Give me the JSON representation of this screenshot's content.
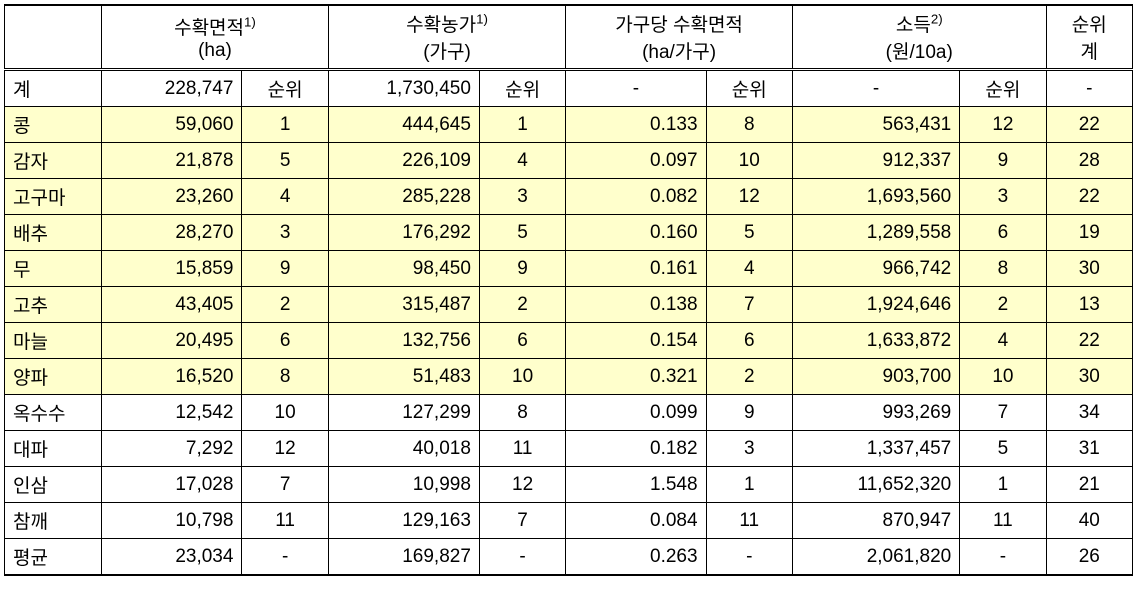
{
  "table": {
    "headers": {
      "h1": "수확면적",
      "h1_sup": "1)",
      "h1_unit": "(ha)",
      "h2": "수확농가",
      "h2_sup": "1)",
      "h2_unit": "(가구)",
      "h3": "가구당 수확면적",
      "h3_unit": "(ha/가구)",
      "h4": "소득",
      "h4_sup": "2)",
      "h4_unit": "(원/10a)",
      "h5": "순위",
      "h5_sub": "계"
    },
    "rank_label": "순위",
    "total_row": {
      "label": "계",
      "v1": "228,747",
      "v2": "1,730,450",
      "v3": "-",
      "v4": "-",
      "r5": "-"
    },
    "rows": [
      {
        "label": "콩",
        "v1": "59,060",
        "r1": "1",
        "v2": "444,645",
        "r2": "1",
        "v3": "0.133",
        "r3": "8",
        "v4": "563,431",
        "r4": "12",
        "r5": "22",
        "hl": true
      },
      {
        "label": "감자",
        "v1": "21,878",
        "r1": "5",
        "v2": "226,109",
        "r2": "4",
        "v3": "0.097",
        "r3": "10",
        "v4": "912,337",
        "r4": "9",
        "r5": "28",
        "hl": true
      },
      {
        "label": "고구마",
        "v1": "23,260",
        "r1": "4",
        "v2": "285,228",
        "r2": "3",
        "v3": "0.082",
        "r3": "12",
        "v4": "1,693,560",
        "r4": "3",
        "r5": "22",
        "hl": true
      },
      {
        "label": "배추",
        "v1": "28,270",
        "r1": "3",
        "v2": "176,292",
        "r2": "5",
        "v3": "0.160",
        "r3": "5",
        "v4": "1,289,558",
        "r4": "6",
        "r5": "19",
        "hl": true
      },
      {
        "label": "무",
        "v1": "15,859",
        "r1": "9",
        "v2": "98,450",
        "r2": "9",
        "v3": "0.161",
        "r3": "4",
        "v4": "966,742",
        "r4": "8",
        "r5": "30",
        "hl": true
      },
      {
        "label": "고추",
        "v1": "43,405",
        "r1": "2",
        "v2": "315,487",
        "r2": "2",
        "v3": "0.138",
        "r3": "7",
        "v4": "1,924,646",
        "r4": "2",
        "r5": "13",
        "hl": true
      },
      {
        "label": "마늘",
        "v1": "20,495",
        "r1": "6",
        "v2": "132,756",
        "r2": "6",
        "v3": "0.154",
        "r3": "6",
        "v4": "1,633,872",
        "r4": "4",
        "r5": "22",
        "hl": true
      },
      {
        "label": "양파",
        "v1": "16,520",
        "r1": "8",
        "v2": "51,483",
        "r2": "10",
        "v3": "0.321",
        "r3": "2",
        "v4": "903,700",
        "r4": "10",
        "r5": "30",
        "hl": true
      },
      {
        "label": "옥수수",
        "v1": "12,542",
        "r1": "10",
        "v2": "127,299",
        "r2": "8",
        "v3": "0.099",
        "r3": "9",
        "v4": "993,269",
        "r4": "7",
        "r5": "34",
        "hl": false
      },
      {
        "label": "대파",
        "v1": "7,292",
        "r1": "12",
        "v2": "40,018",
        "r2": "11",
        "v3": "0.182",
        "r3": "3",
        "v4": "1,337,457",
        "r4": "5",
        "r5": "31",
        "hl": false
      },
      {
        "label": "인삼",
        "v1": "17,028",
        "r1": "7",
        "v2": "10,998",
        "r2": "12",
        "v3": "1.548",
        "r3": "1",
        "v4": "11,652,320",
        "r4": "1",
        "r5": "21",
        "hl": false
      },
      {
        "label": "참깨",
        "v1": "10,798",
        "r1": "11",
        "v2": "129,163",
        "r2": "7",
        "v3": "0.084",
        "r3": "11",
        "v4": "870,947",
        "r4": "11",
        "r5": "40",
        "hl": false
      }
    ],
    "avg_row": {
      "label": "평균",
      "v1": "23,034",
      "r1": "-",
      "v2": "169,827",
      "r2": "-",
      "v3": "0.263",
      "r3": "-",
      "v4": "2,061,820",
      "r4": "-",
      "r5": "26"
    },
    "colors": {
      "highlight_bg": "#ffffcc",
      "border": "#000000",
      "bg": "#ffffff"
    }
  }
}
